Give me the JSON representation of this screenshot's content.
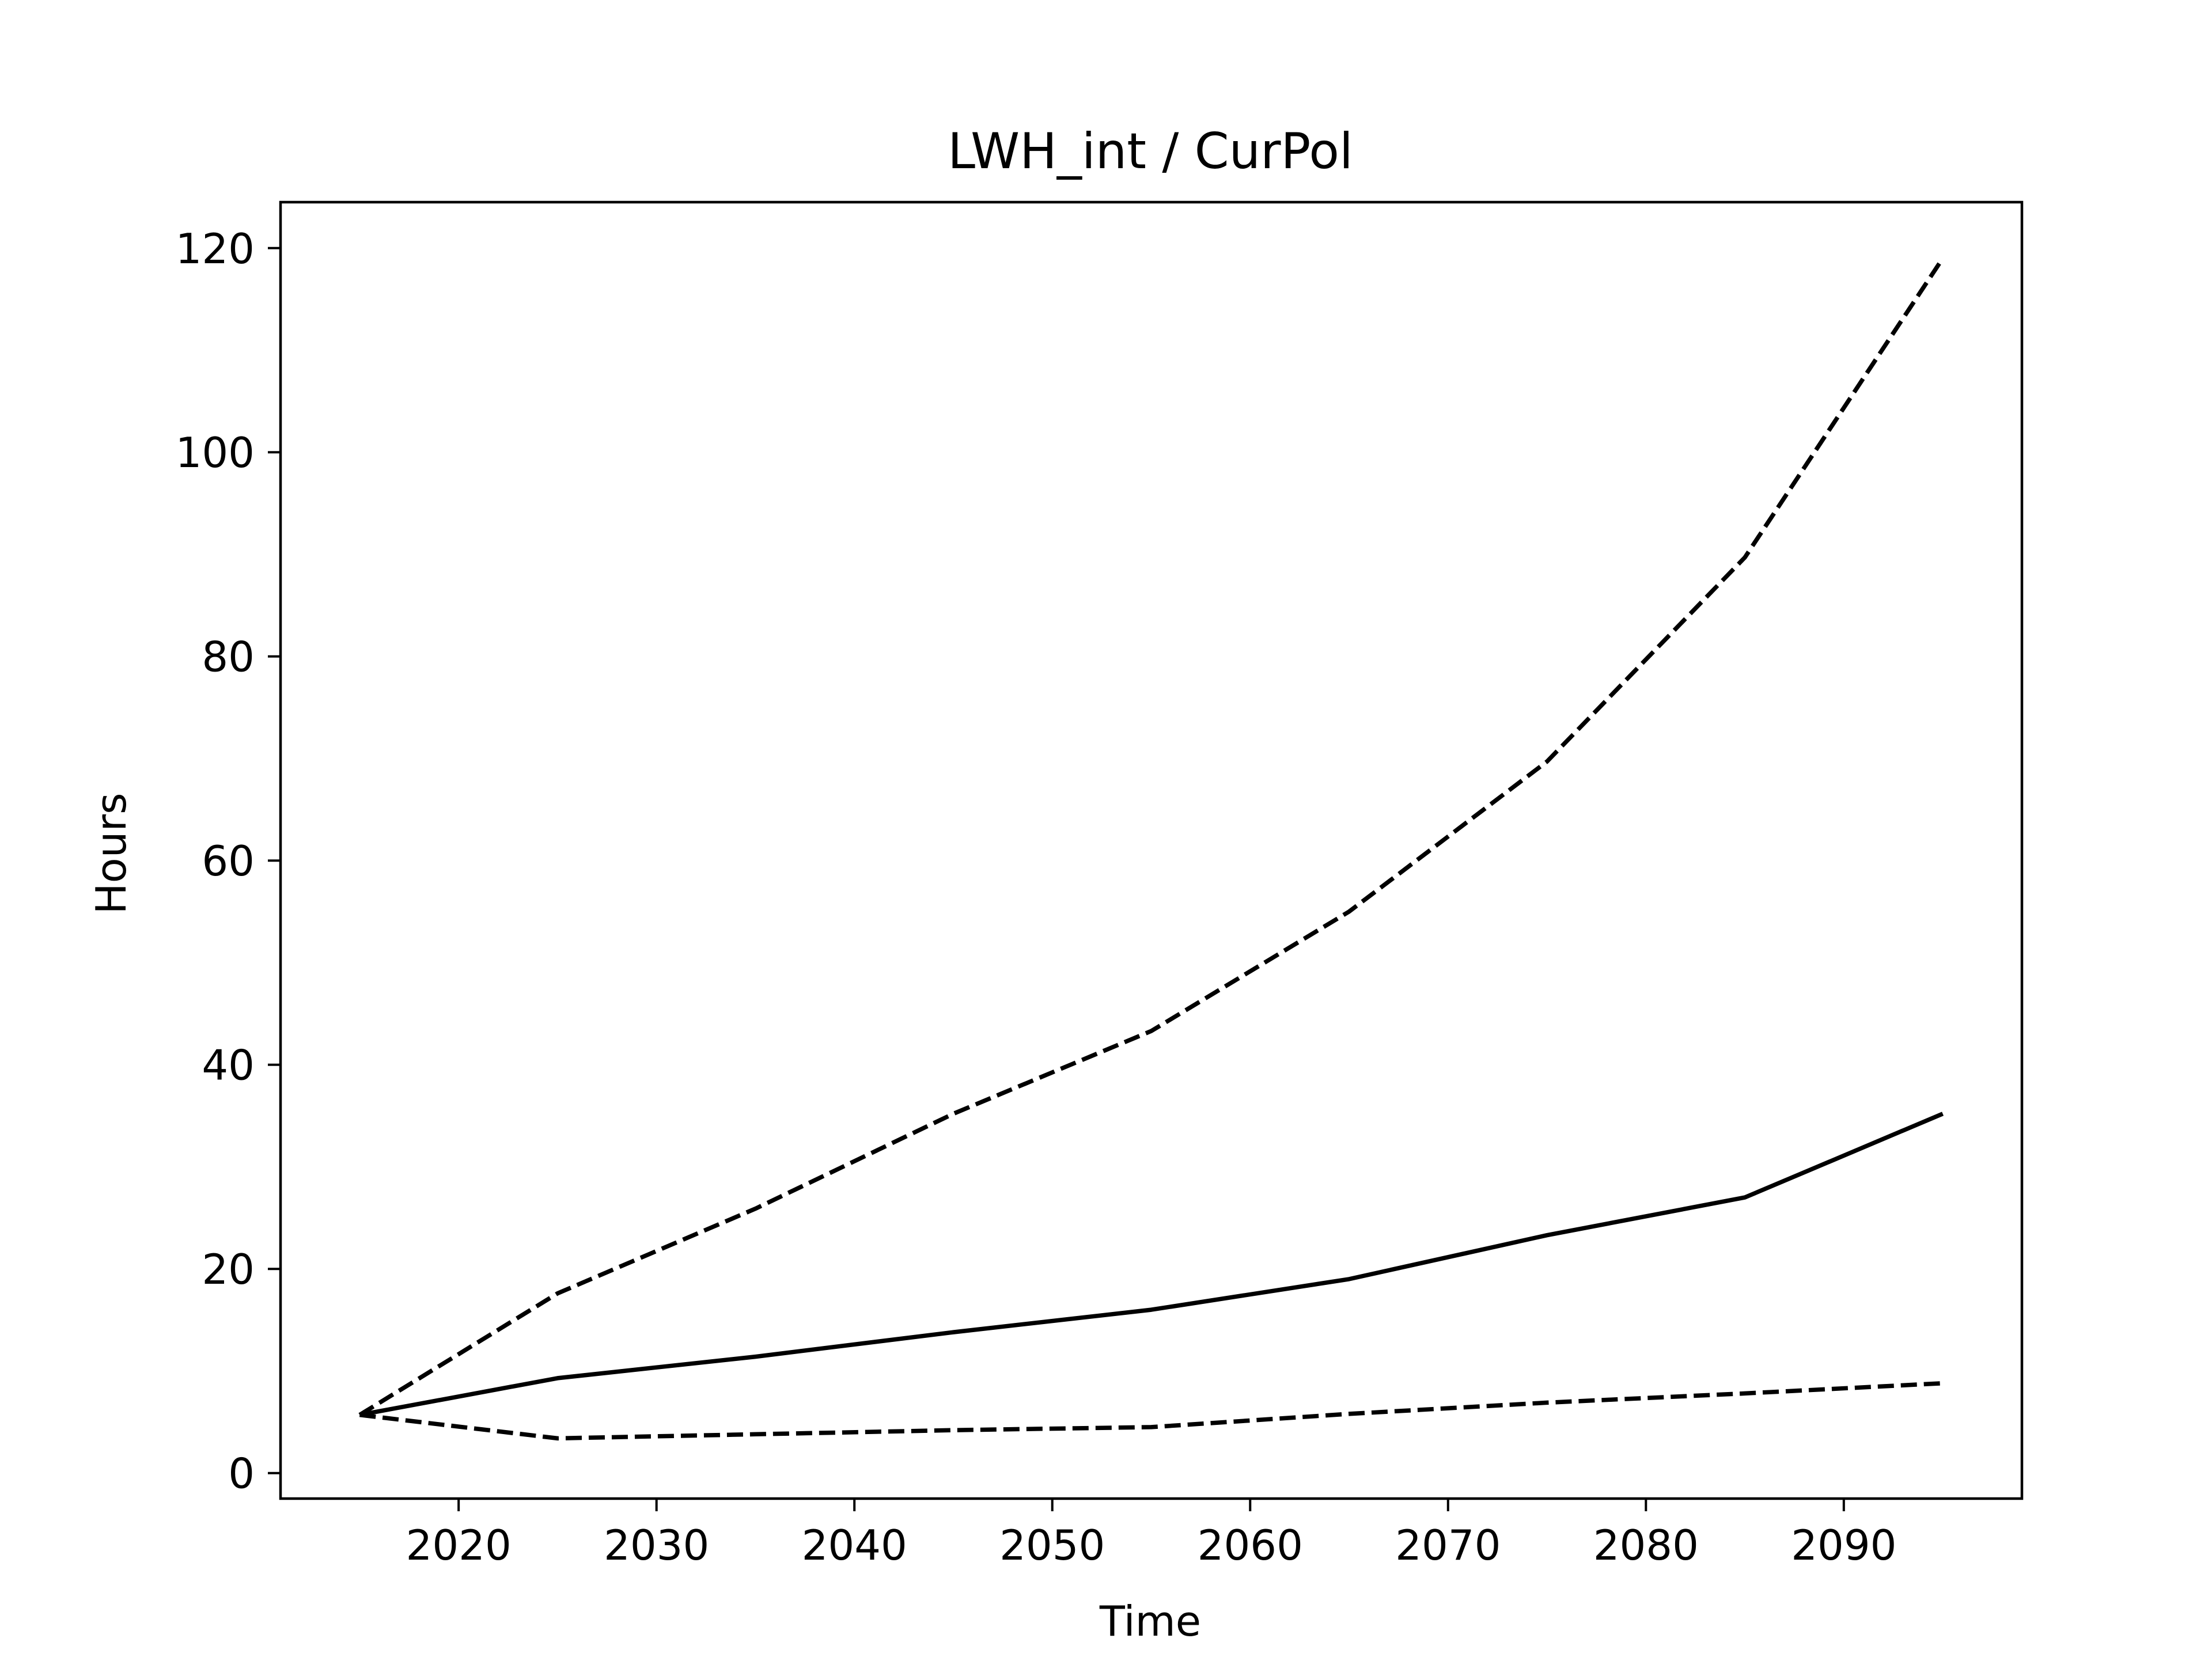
{
  "chart_data": {
    "type": "line",
    "title": "LWH_int / CurPol",
    "xlabel": "Time",
    "ylabel": "Hours",
    "xlim": [
      2011,
      2099
    ],
    "ylim": [
      -2.5,
      124.5
    ],
    "xticks": [
      2020,
      2030,
      2040,
      2050,
      2060,
      2070,
      2080,
      2090
    ],
    "yticks": [
      0,
      20,
      40,
      60,
      80,
      100,
      120
    ],
    "x": [
      2015,
      2025,
      2035,
      2045,
      2055,
      2065,
      2075,
      2085,
      2095
    ],
    "series": [
      {
        "style": "dashed",
        "color": "#000000",
        "values": [
          5.7,
          17.6,
          25.9,
          35.2,
          43.3,
          55.0,
          69.7,
          89.7,
          119.0
        ]
      },
      {
        "style": "solid",
        "color": "#000000",
        "values": [
          5.7,
          9.3,
          11.4,
          13.8,
          16.0,
          19.0,
          23.3,
          27.0,
          35.2
        ]
      },
      {
        "style": "dashed",
        "color": "#000000",
        "values": [
          5.7,
          3.4,
          3.8,
          4.2,
          4.5,
          5.8,
          6.9,
          7.8,
          8.8
        ]
      }
    ],
    "grid": false,
    "legend": "none"
  }
}
